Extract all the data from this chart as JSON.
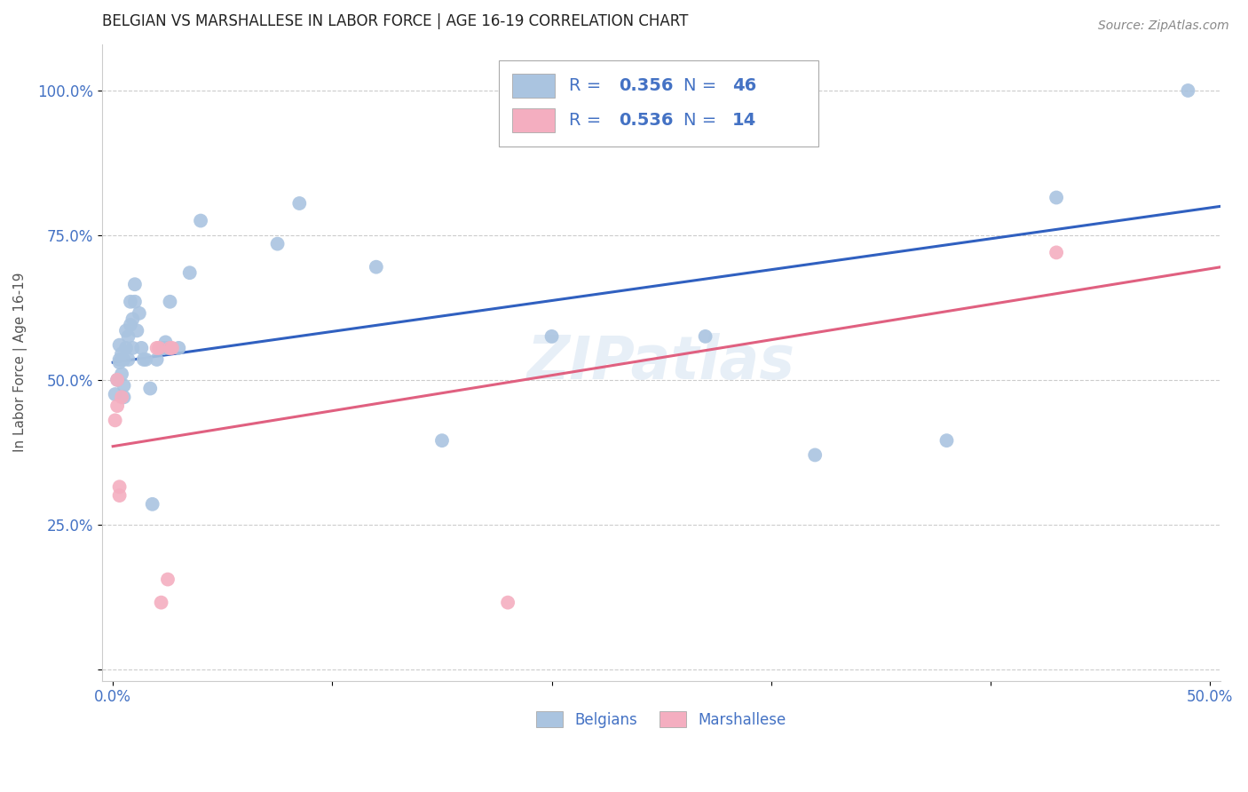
{
  "title": "BELGIAN VS MARSHALLESE IN LABOR FORCE | AGE 16-19 CORRELATION CHART",
  "source": "Source: ZipAtlas.com",
  "ylabel_label": "In Labor Force | Age 16-19",
  "xlim": [
    -0.005,
    0.505
  ],
  "ylim": [
    -0.02,
    1.08
  ],
  "xticks": [
    0.0,
    0.1,
    0.2,
    0.3,
    0.4,
    0.5
  ],
  "xtick_labels": [
    "0.0%",
    "",
    "",
    "",
    "",
    "50.0%"
  ],
  "yticks": [
    0.0,
    0.25,
    0.5,
    0.75,
    1.0
  ],
  "ytick_labels": [
    "",
    "25.0%",
    "50.0%",
    "75.0%",
    "100.0%"
  ],
  "belgian_color": "#aac4e0",
  "marshallese_color": "#f4aec0",
  "blue_line_color": "#3060c0",
  "pink_line_color": "#e06080",
  "watermark": "ZIPatlas",
  "legend_r_belgian": "0.356",
  "legend_n_belgian": "46",
  "legend_r_marshallese": "0.536",
  "legend_n_marshallese": "14",
  "belgians_label": "Belgians",
  "marshallese_label": "Marshallese",
  "belgian_points_x": [
    0.001,
    0.002,
    0.003,
    0.003,
    0.003,
    0.004,
    0.004,
    0.005,
    0.005,
    0.005,
    0.006,
    0.006,
    0.007,
    0.007,
    0.008,
    0.008,
    0.009,
    0.009,
    0.01,
    0.01,
    0.011,
    0.012,
    0.013,
    0.014,
    0.015,
    0.017,
    0.018,
    0.02,
    0.023,
    0.023,
    0.024,
    0.025,
    0.026,
    0.03,
    0.035,
    0.04,
    0.075,
    0.085,
    0.12,
    0.15,
    0.2,
    0.27,
    0.32,
    0.38,
    0.43,
    0.49
  ],
  "belgian_points_y": [
    0.475,
    0.5,
    0.53,
    0.535,
    0.56,
    0.51,
    0.545,
    0.47,
    0.49,
    0.535,
    0.555,
    0.585,
    0.535,
    0.575,
    0.595,
    0.635,
    0.555,
    0.605,
    0.635,
    0.665,
    0.585,
    0.615,
    0.555,
    0.535,
    0.535,
    0.485,
    0.285,
    0.535,
    0.555,
    0.555,
    0.565,
    0.555,
    0.635,
    0.555,
    0.685,
    0.775,
    0.735,
    0.805,
    0.695,
    0.395,
    0.575,
    0.575,
    0.37,
    0.395,
    0.815,
    1.0
  ],
  "marshallese_points_x": [
    0.001,
    0.002,
    0.002,
    0.003,
    0.003,
    0.004,
    0.02,
    0.021,
    0.022,
    0.025,
    0.026,
    0.027,
    0.18,
    0.43
  ],
  "marshallese_points_y": [
    0.43,
    0.455,
    0.5,
    0.3,
    0.315,
    0.47,
    0.555,
    0.555,
    0.115,
    0.155,
    0.555,
    0.555,
    0.115,
    0.72
  ],
  "blue_line_x": [
    0.0,
    0.505
  ],
  "blue_line_y": [
    0.53,
    0.8
  ],
  "pink_line_x": [
    0.0,
    0.505
  ],
  "pink_line_y": [
    0.385,
    0.695
  ],
  "background_color": "#ffffff",
  "grid_color": "#cccccc",
  "tick_color": "#4472c4",
  "title_fontsize": 12,
  "axis_label_fontsize": 11,
  "tick_fontsize": 12,
  "source_fontsize": 10,
  "legend_text_color": "#4472c4"
}
